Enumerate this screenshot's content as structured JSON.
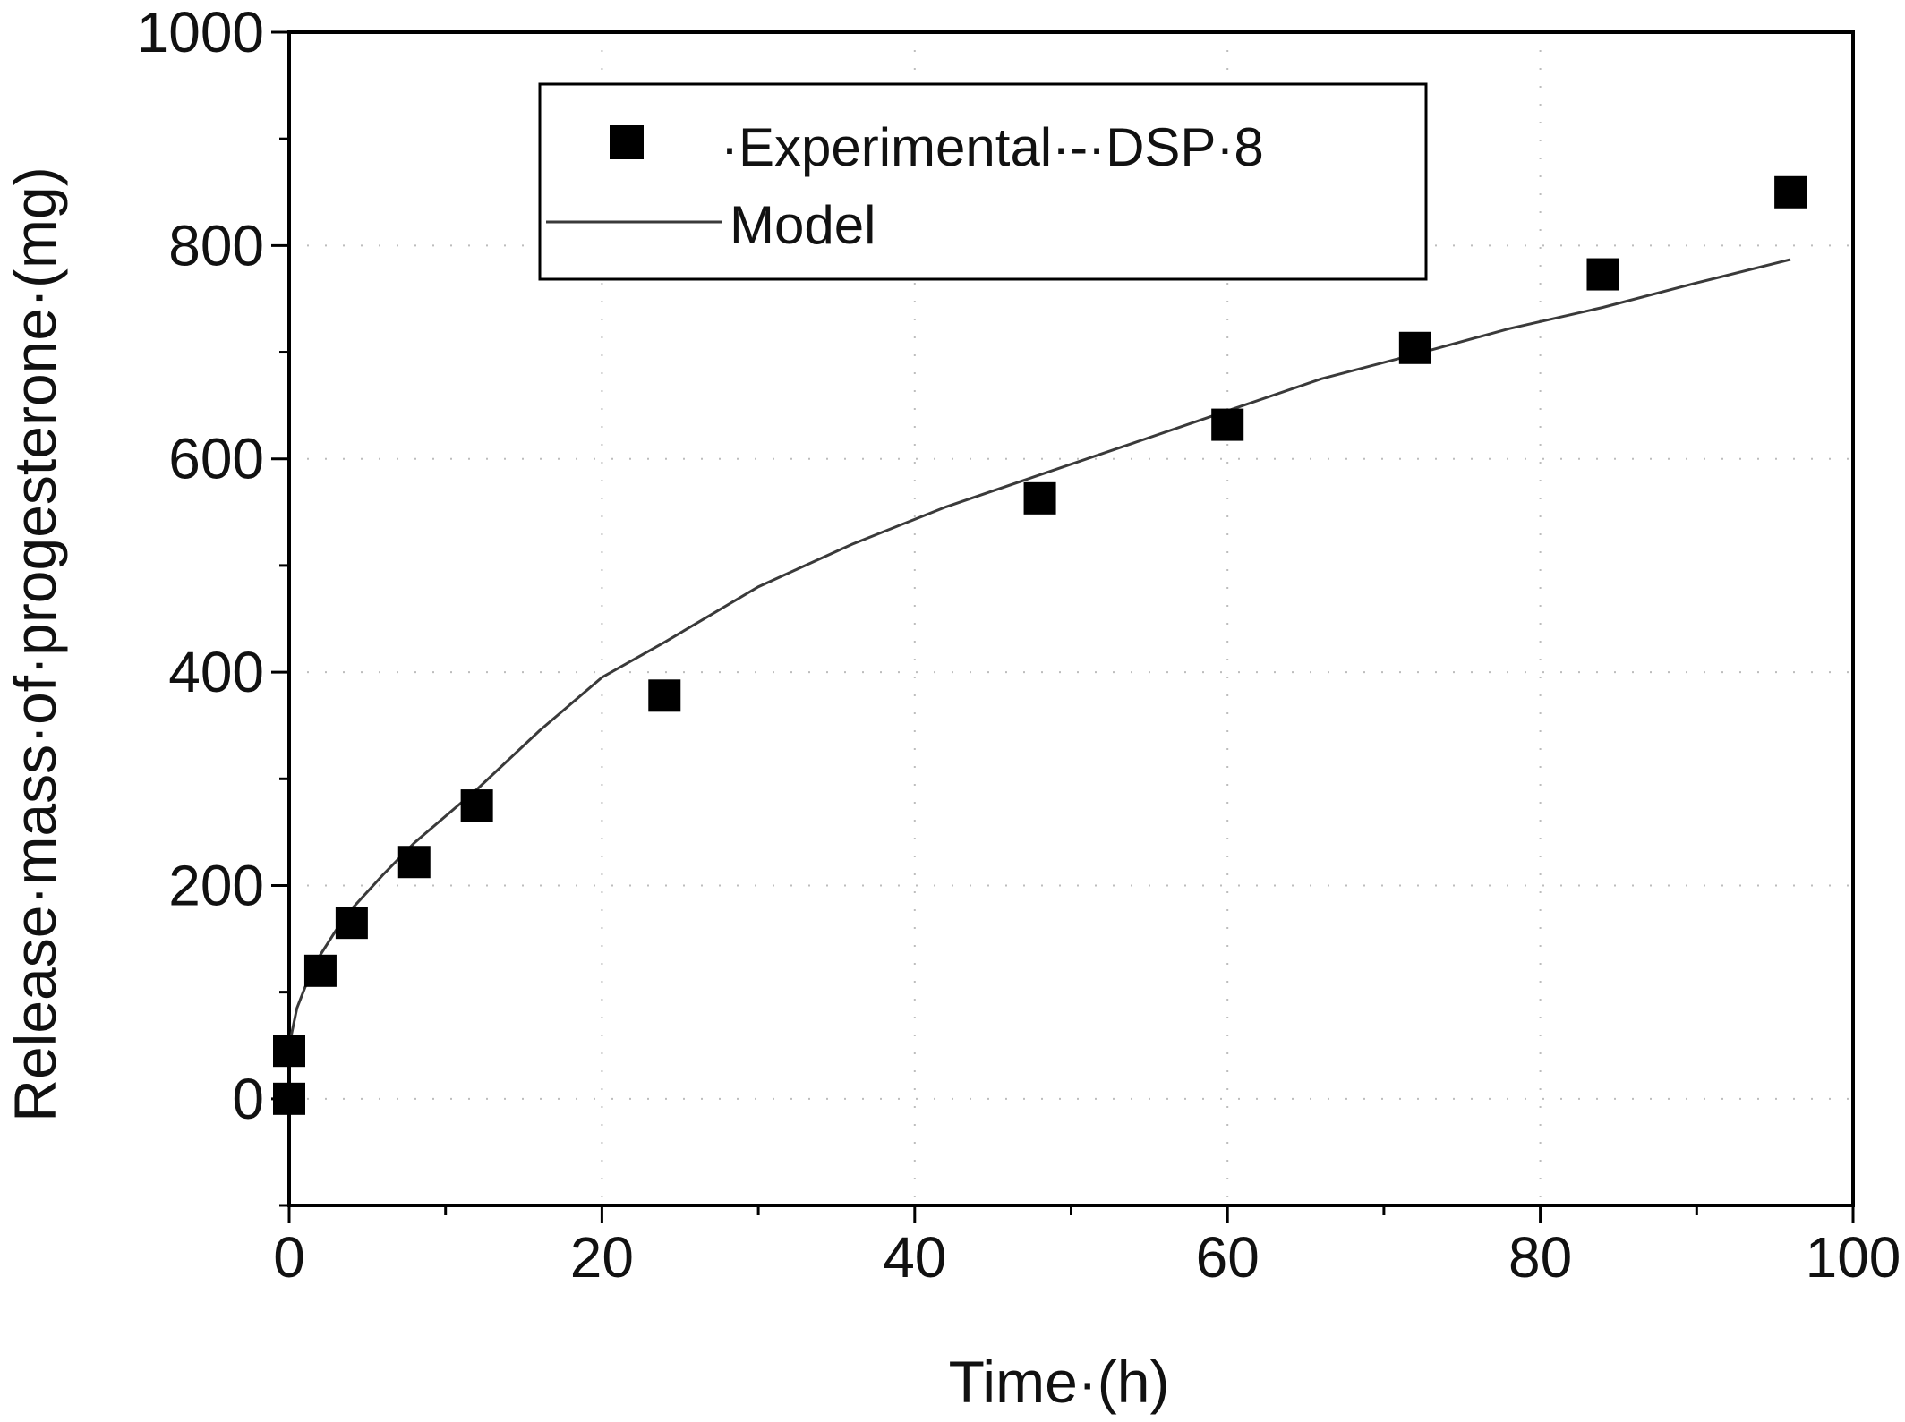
{
  "chart_data": {
    "type": "scatter",
    "xlabel": "Time·(h)",
    "ylabel": "Release·mass·of·progesterone·(mg)",
    "xlim": [
      0,
      100
    ],
    "ylim": [
      -100,
      1000
    ],
    "xticks": [
      0,
      20,
      40,
      60,
      80,
      100
    ],
    "yticks": [
      0,
      200,
      400,
      600,
      800,
      1000
    ],
    "xtick_labels": [
      "0",
      "20",
      "40",
      "60",
      "80",
      "100"
    ],
    "ytick_labels": [
      "0",
      "200",
      "400",
      "600",
      "800",
      "1000"
    ],
    "grid": "dotted",
    "legend_position": "top",
    "series": [
      {
        "name": "·Experimental·-·DSP·8",
        "kind": "scatter",
        "marker": "square",
        "color": "#000000",
        "x": [
          0,
          0,
          2,
          4,
          8,
          12,
          24,
          48,
          60,
          72,
          84,
          96
        ],
        "y": [
          0,
          45,
          120,
          165,
          222,
          275,
          378,
          563,
          632,
          704,
          773,
          850
        ]
      },
      {
        "name": "Model",
        "kind": "line",
        "color": "#3a3a3a",
        "x": [
          0,
          0.5,
          1,
          2,
          3,
          4,
          6,
          8,
          10,
          12,
          16,
          20,
          24,
          30,
          36,
          42,
          48,
          54,
          60,
          66,
          72,
          78,
          84,
          90,
          96
        ],
        "y": [
          50,
          85,
          104,
          135,
          158,
          178,
          210,
          240,
          265,
          290,
          345,
          395,
          428,
          480,
          520,
          555,
          585,
          615,
          645,
          675,
          698,
          722,
          742,
          765,
          787
        ]
      }
    ]
  }
}
